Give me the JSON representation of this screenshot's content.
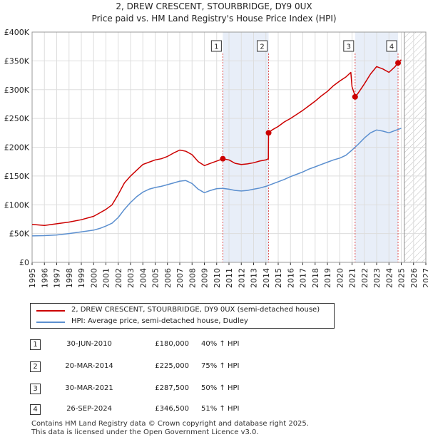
{
  "title": "2, DREW CRESCENT, STOURBRIDGE, DY9 0UX",
  "subtitle": "Price paid vs. HM Land Registry's House Price Index (HPI)",
  "colors": {
    "property": "#cc0000",
    "hpi": "#5b8fcf",
    "marker_line": "#e05050",
    "highlight": "#e8eef8"
  },
  "chart_data": {
    "type": "line",
    "xlim": [
      1995,
      2027
    ],
    "ylim": [
      0,
      400000
    ],
    "x_ticks": [
      1995,
      1996,
      1997,
      1998,
      1999,
      2000,
      2001,
      2002,
      2003,
      2004,
      2005,
      2006,
      2007,
      2008,
      2009,
      2010,
      2011,
      2012,
      2013,
      2014,
      2015,
      2016,
      2017,
      2018,
      2019,
      2020,
      2021,
      2022,
      2023,
      2024,
      2025,
      2026,
      2027
    ],
    "y_ticks": [
      {
        "value": 0,
        "label": "£0"
      },
      {
        "value": 50000,
        "label": "£50K"
      },
      {
        "value": 100000,
        "label": "£100K"
      },
      {
        "value": 150000,
        "label": "£150K"
      },
      {
        "value": 200000,
        "label": "£200K"
      },
      {
        "value": 250000,
        "label": "£250K"
      },
      {
        "value": 300000,
        "label": "£300K"
      },
      {
        "value": 350000,
        "label": "£350K"
      },
      {
        "value": 400000,
        "label": "£400K"
      }
    ],
    "forecast_start": 2025.25,
    "highlight_bands": [
      [
        2010.5,
        2014.22
      ],
      [
        2021.25,
        2024.74
      ]
    ],
    "series": [
      {
        "name": "2, DREW CRESCENT, STOURBRIDGE, DY9 0UX (semi-detached house)",
        "key": "property",
        "x": [
          1995.0,
          1996.0,
          1997.0,
          1998.0,
          1999.0,
          2000.0,
          2000.5,
          2001.0,
          2001.5,
          2002.0,
          2002.5,
          2003.0,
          2003.5,
          2004.0,
          2004.5,
          2005.0,
          2005.5,
          2006.0,
          2006.5,
          2007.0,
          2007.5,
          2008.0,
          2008.5,
          2009.0,
          2009.5,
          2010.0,
          2010.5,
          2011.0,
          2011.5,
          2012.0,
          2012.5,
          2013.0,
          2013.5,
          2014.0,
          2014.2,
          2014.22,
          2014.5,
          2015.0,
          2015.5,
          2016.0,
          2016.5,
          2017.0,
          2017.5,
          2018.0,
          2018.5,
          2019.0,
          2019.5,
          2020.0,
          2020.5,
          2020.9,
          2021.0,
          2021.2,
          2021.25,
          2021.5,
          2022.0,
          2022.5,
          2023.0,
          2023.5,
          2024.0,
          2024.5,
          2024.74,
          2025.0
        ],
        "y": [
          66000,
          64000,
          67000,
          70000,
          74000,
          80000,
          86000,
          92000,
          100000,
          118000,
          138000,
          150000,
          160000,
          170000,
          174000,
          178000,
          180000,
          184000,
          190000,
          195000,
          193000,
          187000,
          175000,
          168000,
          172000,
          176000,
          180000,
          178000,
          172000,
          170000,
          171000,
          173000,
          176000,
          178000,
          180000,
          225000,
          230000,
          236000,
          244000,
          250000,
          257000,
          264000,
          272000,
          280000,
          289000,
          297000,
          307000,
          315000,
          322000,
          330000,
          305000,
          292000,
          287500,
          294000,
          310000,
          327000,
          340000,
          336000,
          330000,
          340000,
          346500,
          352000
        ]
      },
      {
        "name": "HPI: Average price, semi-detached house, Dudley",
        "key": "hpi",
        "x": [
          1995.0,
          1996.0,
          1997.0,
          1998.0,
          1999.0,
          2000.0,
          2000.5,
          2001.0,
          2001.5,
          2002.0,
          2002.5,
          2003.0,
          2003.5,
          2004.0,
          2004.5,
          2005.0,
          2005.5,
          2006.0,
          2006.5,
          2007.0,
          2007.5,
          2008.0,
          2008.5,
          2009.0,
          2009.5,
          2010.0,
          2010.5,
          2011.0,
          2011.5,
          2012.0,
          2012.5,
          2013.0,
          2013.5,
          2014.0,
          2014.5,
          2015.0,
          2015.5,
          2016.0,
          2016.5,
          2017.0,
          2017.5,
          2018.0,
          2018.5,
          2019.0,
          2019.5,
          2020.0,
          2020.5,
          2021.0,
          2021.5,
          2022.0,
          2022.5,
          2023.0,
          2023.5,
          2024.0,
          2024.5,
          2025.0
        ],
        "y": [
          46000,
          46500,
          47500,
          50000,
          53000,
          56000,
          59000,
          63000,
          68000,
          78000,
          92000,
          104000,
          114000,
          122000,
          127000,
          130000,
          132000,
          135000,
          138000,
          141000,
          142000,
          137000,
          127000,
          121000,
          125000,
          128000,
          128500,
          127000,
          125000,
          124000,
          125000,
          127000,
          129000,
          132000,
          136000,
          140000,
          144000,
          149000,
          153000,
          157000,
          162000,
          166000,
          170000,
          174000,
          178000,
          181000,
          186000,
          195000,
          205000,
          216000,
          225000,
          230000,
          228000,
          225000,
          229000,
          233000
        ]
      }
    ],
    "sales": [
      {
        "n": "1",
        "x": 2010.5,
        "y": 180000
      },
      {
        "n": "2",
        "x": 2014.22,
        "y": 225000
      },
      {
        "n": "3",
        "x": 2021.25,
        "y": 287500
      },
      {
        "n": "4",
        "x": 2024.74,
        "y": 346500
      }
    ]
  },
  "legend": {
    "property_label": "2, DREW CRESCENT, STOURBRIDGE, DY9 0UX (semi-detached house)",
    "hpi_label": "HPI: Average price, semi-detached house, Dudley"
  },
  "sales_table": [
    {
      "n": "1",
      "date": "30-JUN-2010",
      "price": "£180,000",
      "hpi": "40% ↑ HPI"
    },
    {
      "n": "2",
      "date": "20-MAR-2014",
      "price": "£225,000",
      "hpi": "75% ↑ HPI"
    },
    {
      "n": "3",
      "date": "30-MAR-2021",
      "price": "£287,500",
      "hpi": "50% ↑ HPI"
    },
    {
      "n": "4",
      "date": "26-SEP-2024",
      "price": "£346,500",
      "hpi": "51% ↑ HPI"
    }
  ],
  "footer": {
    "line1": "Contains HM Land Registry data © Crown copyright and database right 2025.",
    "line2": "This data is licensed under the Open Government Licence v3.0."
  }
}
